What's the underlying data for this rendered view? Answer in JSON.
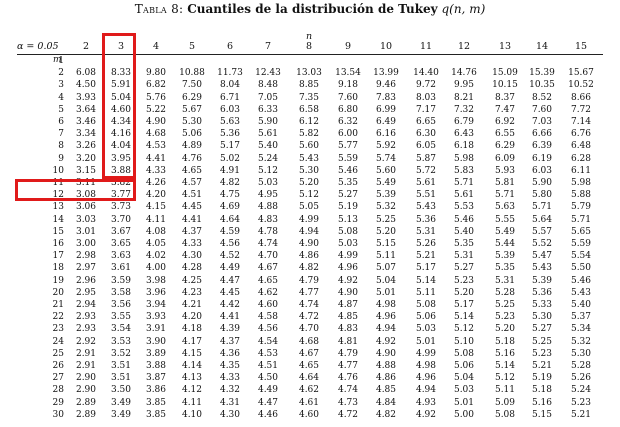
{
  "caption": {
    "label": "Tabla 8:",
    "title": "Cuantiles de la distribución de Tukey",
    "math": "q(n, m)"
  },
  "table": {
    "n_symbol": "n",
    "alpha_label": "α = 0.05",
    "m_symbol": "m",
    "columns": [
      "2",
      "3",
      "4",
      "5",
      "6",
      "7",
      "8",
      "9",
      "10",
      "11",
      "12",
      "13",
      "14",
      "15"
    ],
    "rows": [
      {
        "m": "1",
        "values": [
          "",
          "",
          "",
          "",
          "",
          "",
          "",
          "",
          "",
          "",
          "",
          "",
          "",
          ""
        ]
      },
      {
        "m": "2",
        "values": [
          "6.08",
          "8.33",
          "9.80",
          "10.88",
          "11.73",
          "12.43",
          "13.03",
          "13.54",
          "13.99",
          "14.40",
          "14.76",
          "15.09",
          "15.39",
          "15.67"
        ]
      },
      {
        "m": "3",
        "values": [
          "4.50",
          "5.91",
          "6.82",
          "7.50",
          "8.04",
          "8.48",
          "8.85",
          "9.18",
          "9.46",
          "9.72",
          "9.95",
          "10.15",
          "10.35",
          "10.52"
        ]
      },
      {
        "m": "4",
        "values": [
          "3.93",
          "5.04",
          "5.76",
          "6.29",
          "6.71",
          "7.05",
          "7.35",
          "7.60",
          "7.83",
          "8.03",
          "8.21",
          "8.37",
          "8.52",
          "8.66"
        ]
      },
      {
        "m": "5",
        "values": [
          "3.64",
          "4.60",
          "5.22",
          "5.67",
          "6.03",
          "6.33",
          "6.58",
          "6.80",
          "6.99",
          "7.17",
          "7.32",
          "7.47",
          "7.60",
          "7.72"
        ]
      },
      {
        "m": "6",
        "values": [
          "3.46",
          "4.34",
          "4.90",
          "5.30",
          "5.63",
          "5.90",
          "6.12",
          "6.32",
          "6.49",
          "6.65",
          "6.79",
          "6.92",
          "7.03",
          "7.14"
        ]
      },
      {
        "m": "7",
        "values": [
          "3.34",
          "4.16",
          "4.68",
          "5.06",
          "5.36",
          "5.61",
          "5.82",
          "6.00",
          "6.16",
          "6.30",
          "6.43",
          "6.55",
          "6.66",
          "6.76"
        ]
      },
      {
        "m": "8",
        "values": [
          "3.26",
          "4.04",
          "4.53",
          "4.89",
          "5.17",
          "5.40",
          "5.60",
          "5.77",
          "5.92",
          "6.05",
          "6.18",
          "6.29",
          "6.39",
          "6.48"
        ]
      },
      {
        "m": "9",
        "values": [
          "3.20",
          "3.95",
          "4.41",
          "4.76",
          "5.02",
          "5.24",
          "5.43",
          "5.59",
          "5.74",
          "5.87",
          "5.98",
          "6.09",
          "6.19",
          "6.28"
        ]
      },
      {
        "m": "10",
        "values": [
          "3.15",
          "3.88",
          "4.33",
          "4.65",
          "4.91",
          "5.12",
          "5.30",
          "5.46",
          "5.60",
          "5.72",
          "5.83",
          "5.93",
          "6.03",
          "6.11"
        ]
      },
      {
        "m": "11",
        "values": [
          "3.11",
          "3.82",
          "4.26",
          "4.57",
          "4.82",
          "5.03",
          "5.20",
          "5.35",
          "5.49",
          "5.61",
          "5.71",
          "5.81",
          "5.90",
          "5.98"
        ]
      },
      {
        "m": "12",
        "values": [
          "3.08",
          "3.77",
          "4.20",
          "4.51",
          "4.75",
          "4.95",
          "5.12",
          "5.27",
          "5.39",
          "5.51",
          "5.61",
          "5.71",
          "5.80",
          "5.88"
        ]
      },
      {
        "m": "13",
        "values": [
          "3.06",
          "3.73",
          "4.15",
          "4.45",
          "4.69",
          "4.88",
          "5.05",
          "5.19",
          "5.32",
          "5.43",
          "5.53",
          "5.63",
          "5.71",
          "5.79"
        ]
      },
      {
        "m": "14",
        "values": [
          "3.03",
          "3.70",
          "4.11",
          "4.41",
          "4.64",
          "4.83",
          "4.99",
          "5.13",
          "5.25",
          "5.36",
          "5.46",
          "5.55",
          "5.64",
          "5.71"
        ]
      },
      {
        "m": "15",
        "values": [
          "3.01",
          "3.67",
          "4.08",
          "4.37",
          "4.59",
          "4.78",
          "4.94",
          "5.08",
          "5.20",
          "5.31",
          "5.40",
          "5.49",
          "5.57",
          "5.65"
        ]
      },
      {
        "m": "16",
        "values": [
          "3.00",
          "3.65",
          "4.05",
          "4.33",
          "4.56",
          "4.74",
          "4.90",
          "5.03",
          "5.15",
          "5.26",
          "5.35",
          "5.44",
          "5.52",
          "5.59"
        ]
      },
      {
        "m": "17",
        "values": [
          "2.98",
          "3.63",
          "4.02",
          "4.30",
          "4.52",
          "4.70",
          "4.86",
          "4.99",
          "5.11",
          "5.21",
          "5.31",
          "5.39",
          "5.47",
          "5.54"
        ]
      },
      {
        "m": "18",
        "values": [
          "2.97",
          "3.61",
          "4.00",
          "4.28",
          "4.49",
          "4.67",
          "4.82",
          "4.96",
          "5.07",
          "5.17",
          "5.27",
          "5.35",
          "5.43",
          "5.50"
        ]
      },
      {
        "m": "19",
        "values": [
          "2.96",
          "3.59",
          "3.98",
          "4.25",
          "4.47",
          "4.65",
          "4.79",
          "4.92",
          "5.04",
          "5.14",
          "5.23",
          "5.31",
          "5.39",
          "5.46"
        ]
      },
      {
        "m": "20",
        "values": [
          "2.95",
          "3.58",
          "3.96",
          "4.23",
          "4.45",
          "4.62",
          "4.77",
          "4.90",
          "5.01",
          "5.11",
          "5.20",
          "5.28",
          "5.36",
          "5.43"
        ]
      },
      {
        "m": "21",
        "values": [
          "2.94",
          "3.56",
          "3.94",
          "4.21",
          "4.42",
          "4.60",
          "4.74",
          "4.87",
          "4.98",
          "5.08",
          "5.17",
          "5.25",
          "5.33",
          "5.40"
        ]
      },
      {
        "m": "22",
        "values": [
          "2.93",
          "3.55",
          "3.93",
          "4.20",
          "4.41",
          "4.58",
          "4.72",
          "4.85",
          "4.96",
          "5.06",
          "5.14",
          "5.23",
          "5.30",
          "5.37"
        ]
      },
      {
        "m": "23",
        "values": [
          "2.93",
          "3.54",
          "3.91",
          "4.18",
          "4.39",
          "4.56",
          "4.70",
          "4.83",
          "4.94",
          "5.03",
          "5.12",
          "5.20",
          "5.27",
          "5.34"
        ]
      },
      {
        "m": "24",
        "values": [
          "2.92",
          "3.53",
          "3.90",
          "4.17",
          "4.37",
          "4.54",
          "4.68",
          "4.81",
          "4.92",
          "5.01",
          "5.10",
          "5.18",
          "5.25",
          "5.32"
        ]
      },
      {
        "m": "25",
        "values": [
          "2.91",
          "3.52",
          "3.89",
          "4.15",
          "4.36",
          "4.53",
          "4.67",
          "4.79",
          "4.90",
          "4.99",
          "5.08",
          "5.16",
          "5.23",
          "5.30"
        ]
      },
      {
        "m": "26",
        "values": [
          "2.91",
          "3.51",
          "3.88",
          "4.14",
          "4.35",
          "4.51",
          "4.65",
          "4.77",
          "4.88",
          "4.98",
          "5.06",
          "5.14",
          "5.21",
          "5.28"
        ]
      },
      {
        "m": "27",
        "values": [
          "2.90",
          "3.51",
          "3.87",
          "4.13",
          "4.33",
          "4.50",
          "4.64",
          "4.76",
          "4.86",
          "4.96",
          "5.04",
          "5.12",
          "5.19",
          "5.26"
        ]
      },
      {
        "m": "28",
        "values": [
          "2.90",
          "3.50",
          "3.86",
          "4.12",
          "4.32",
          "4.49",
          "4.62",
          "4.74",
          "4.85",
          "4.94",
          "5.03",
          "5.11",
          "5.18",
          "5.24"
        ]
      },
      {
        "m": "29",
        "values": [
          "2.89",
          "3.49",
          "3.85",
          "4.11",
          "4.31",
          "4.47",
          "4.61",
          "4.73",
          "4.84",
          "4.93",
          "5.01",
          "5.09",
          "5.16",
          "5.23"
        ]
      },
      {
        "m": "30",
        "values": [
          "2.89",
          "3.49",
          "3.85",
          "4.10",
          "4.30",
          "4.46",
          "4.60",
          "4.72",
          "4.82",
          "4.92",
          "5.00",
          "5.08",
          "5.15",
          "5.21"
        ]
      }
    ]
  },
  "highlights": {
    "color": "#e01a1a",
    "column": "3",
    "row": "12"
  }
}
